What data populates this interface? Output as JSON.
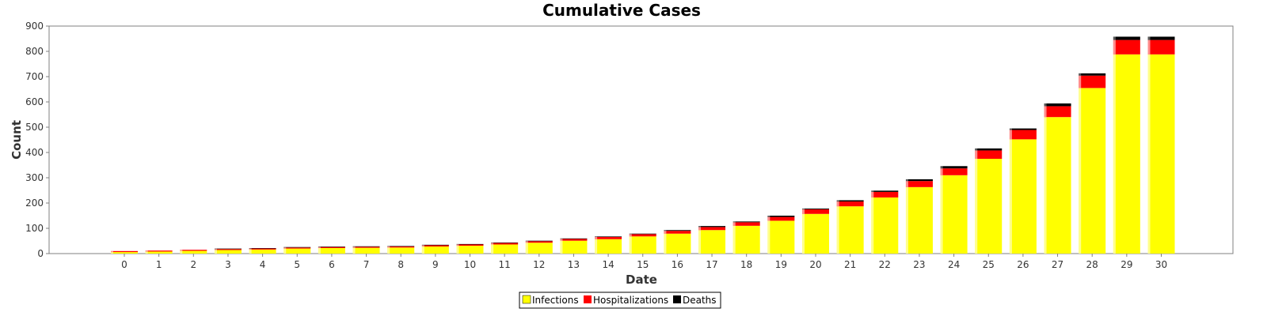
{
  "chart_data": {
    "type": "bar",
    "stacked": true,
    "title": "Cumulative Cases",
    "xlabel": "Date",
    "ylabel": "Count",
    "ylim": [
      0,
      900
    ],
    "yticks": [
      0,
      100,
      200,
      300,
      400,
      500,
      600,
      700,
      800,
      900
    ],
    "categories": [
      "0",
      "1",
      "2",
      "3",
      "4",
      "5",
      "6",
      "7",
      "8",
      "9",
      "10",
      "11",
      "12",
      "13",
      "14",
      "15",
      "16",
      "17",
      "18",
      "19",
      "20",
      "21",
      "22",
      "23",
      "24",
      "25",
      "26",
      "27",
      "28",
      "29",
      "30"
    ],
    "series": [
      {
        "name": "Infections",
        "color": "#ffff00",
        "values": [
          6,
          8,
          11,
          14,
          16,
          20,
          22,
          23,
          24,
          28,
          31,
          36,
          43,
          51,
          57,
          68,
          79,
          93,
          110,
          130,
          157,
          187,
          222,
          263,
          310,
          375,
          452,
          540,
          655,
          788,
          788
        ]
      },
      {
        "name": "Hospitalizations",
        "color": "#ff0000",
        "values": [
          4,
          4,
          4,
          4,
          4,
          4,
          4,
          4,
          4,
          5,
          5,
          6,
          6,
          7,
          9,
          9,
          11,
          12,
          14,
          15,
          18,
          19,
          22,
          24,
          27,
          33,
          37,
          43,
          49,
          57,
          57
        ]
      },
      {
        "name": "Deaths",
        "color": "#000000",
        "values": [
          0,
          0,
          0,
          1,
          1,
          1,
          1,
          1,
          1,
          1,
          1,
          1,
          2,
          2,
          2,
          2,
          3,
          4,
          3,
          5,
          3,
          5,
          5,
          7,
          9,
          8,
          6,
          11,
          9,
          13,
          13
        ]
      }
    ],
    "grid": false,
    "legend": "bottom"
  }
}
